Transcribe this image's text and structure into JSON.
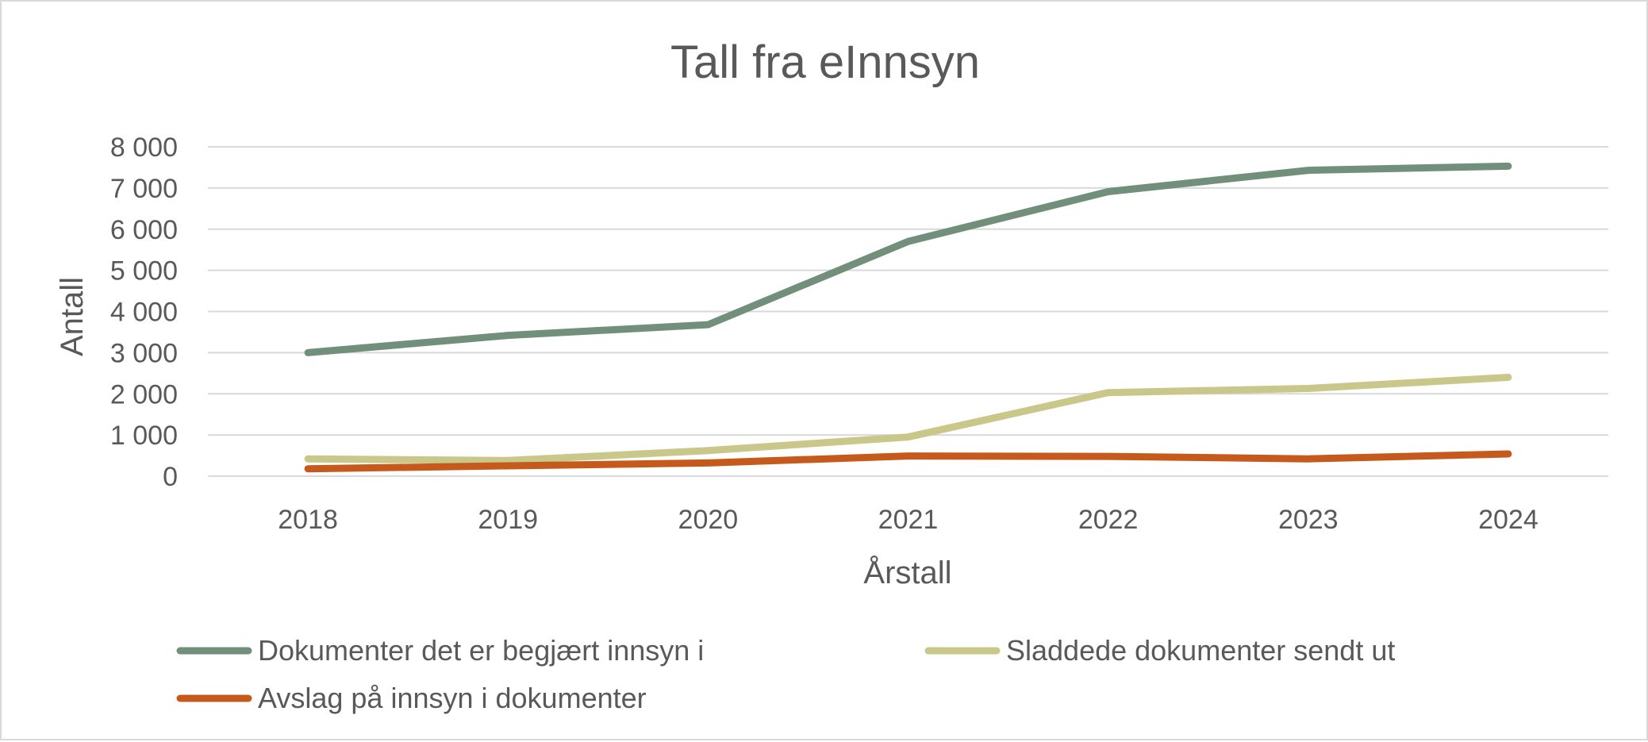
{
  "chart_data": {
    "type": "line",
    "title": "Tall fra eInnsyn",
    "xlabel": "Årstall",
    "ylabel": "Antall",
    "categories": [
      "2018",
      "2019",
      "2020",
      "2021",
      "2022",
      "2023",
      "2024"
    ],
    "ylim": [
      0,
      8000
    ],
    "yticks": [
      0,
      1000,
      2000,
      3000,
      4000,
      5000,
      6000,
      7000,
      8000
    ],
    "ytick_labels": [
      "0",
      "1 000",
      "2 000",
      "3 000",
      "4 000",
      "5 000",
      "6 000",
      "7 000",
      "8 000"
    ],
    "grid": "horizontal",
    "legend_position": "bottom",
    "series": [
      {
        "name": "Dokumenter det er begjært innsyn i",
        "color": "#728f7c",
        "values": [
          3000,
          3420,
          3680,
          5700,
          6910,
          7430,
          7530
        ]
      },
      {
        "name": "Sladdede dokumenter sendt ut",
        "color": "#c9c88a",
        "values": [
          420,
          380,
          620,
          950,
          2030,
          2130,
          2400
        ]
      },
      {
        "name": "Avslag på innsyn i dokumenter",
        "color": "#c55a1c",
        "values": [
          180,
          250,
          320,
          490,
          480,
          420,
          540
        ]
      }
    ]
  }
}
